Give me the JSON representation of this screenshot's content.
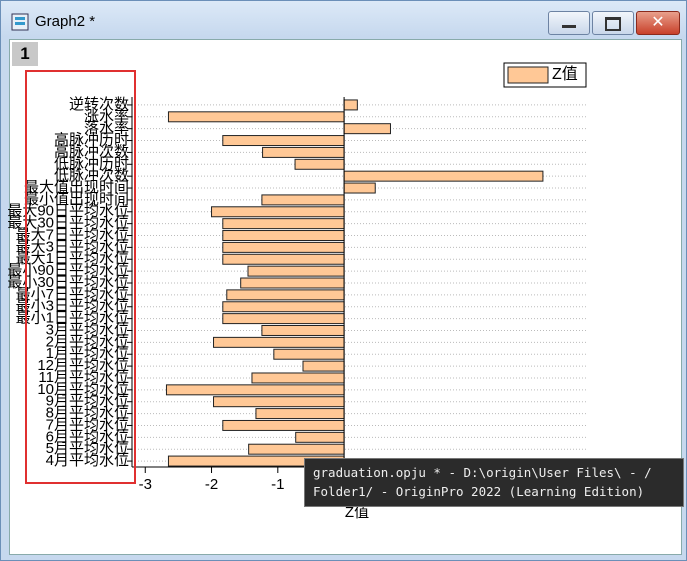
{
  "window": {
    "title": "Graph2 *",
    "layer": "1"
  },
  "tooltip": {
    "line1": "graduation.opju * - D:\\origin\\User Files\\ - /",
    "line2": "Folder1/ - OriginPro 2022 (Learning Edition)"
  },
  "chart_data": {
    "type": "barh",
    "categories": [
      "逆转次数",
      "涨水率",
      "落水率",
      "高脉冲历时",
      "高脉冲次数",
      "低脉冲历时",
      "低脉冲次数",
      "最大值出现时间",
      "最小值出现时间",
      "最大90日平均水位",
      "最大30日平均水位",
      "最大7日平均水位",
      "最大3日平均水位",
      "最大1日平均水位",
      "最小90日平均水位",
      "最小30日平均水位",
      "最小7日平均水位",
      "最小3日平均水位",
      "最小1日平均水位",
      "3月平均水位",
      "2月平均水位",
      "1月平均水位",
      "12月平均水位",
      "11月平均水位",
      "10月平均水位",
      "9月平均水位",
      "8月平均水位",
      "7月平均水位",
      "6月平均水位",
      "5月平均水位",
      "4月平均水位"
    ],
    "series": [
      {
        "name": "Z值",
        "color": "#ffc896",
        "values": [
          0.2,
          -2.65,
          0.7,
          -1.83,
          -1.23,
          -0.74,
          3.0,
          0.47,
          -1.24,
          -2.0,
          -1.83,
          -1.83,
          -1.83,
          -1.83,
          -1.45,
          -1.56,
          -1.77,
          -1.83,
          -1.83,
          -1.24,
          -1.97,
          -1.06,
          -0.62,
          -1.39,
          -2.68,
          -1.97,
          -1.33,
          -1.83,
          -0.73,
          -1.44,
          -2.65
        ]
      }
    ],
    "x_label": "Z值",
    "xlim": [
      -3.2,
      3.65
    ],
    "xticks": [
      -3,
      -2,
      -1,
      0,
      1,
      2,
      3
    ],
    "grid": true
  }
}
